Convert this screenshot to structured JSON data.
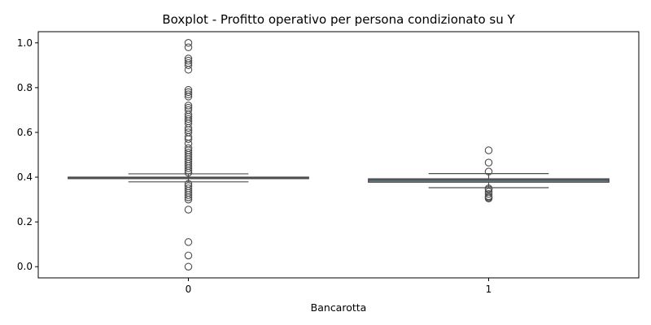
{
  "chart_data": {
    "type": "box",
    "title": "Boxplot - Profitto operativo per persona condizionato su Y",
    "xlabel": "Bancarotta",
    "ylabel": "",
    "ylim": [
      -0.05,
      1.05
    ],
    "yticks": [
      "0.0",
      "0.2",
      "0.4",
      "0.6",
      "0.8",
      "1.0"
    ],
    "categories": [
      "0",
      "1"
    ],
    "grid": false,
    "colors": {
      "box0": "#ffffff",
      "box1": "#87ceeb",
      "edge": "#4d4d4d"
    },
    "boxes": [
      {
        "category": "0",
        "q1": 0.3955,
        "median": 0.3975,
        "q3": 0.3995,
        "whisker_low": 0.379,
        "whisker_high": 0.415,
        "outliers": [
          1.0,
          0.98,
          0.93,
          0.92,
          0.91,
          0.9,
          0.88,
          0.79,
          0.78,
          0.77,
          0.76,
          0.72,
          0.71,
          0.7,
          0.68,
          0.67,
          0.66,
          0.65,
          0.64,
          0.62,
          0.61,
          0.6,
          0.58,
          0.57,
          0.55,
          0.53,
          0.52,
          0.51,
          0.5,
          0.49,
          0.48,
          0.47,
          0.46,
          0.45,
          0.44,
          0.43,
          0.42,
          0.37,
          0.36,
          0.35,
          0.34,
          0.33,
          0.32,
          0.31,
          0.3,
          0.255,
          0.11,
          0.05,
          0.0
        ]
      },
      {
        "category": "1",
        "q1": 0.378,
        "median": 0.386,
        "q3": 0.392,
        "whisker_low": 0.353,
        "whisker_high": 0.416,
        "outliers": [
          0.52,
          0.465,
          0.425,
          0.35,
          0.345,
          0.335,
          0.325,
          0.315,
          0.31,
          0.305
        ]
      }
    ]
  }
}
